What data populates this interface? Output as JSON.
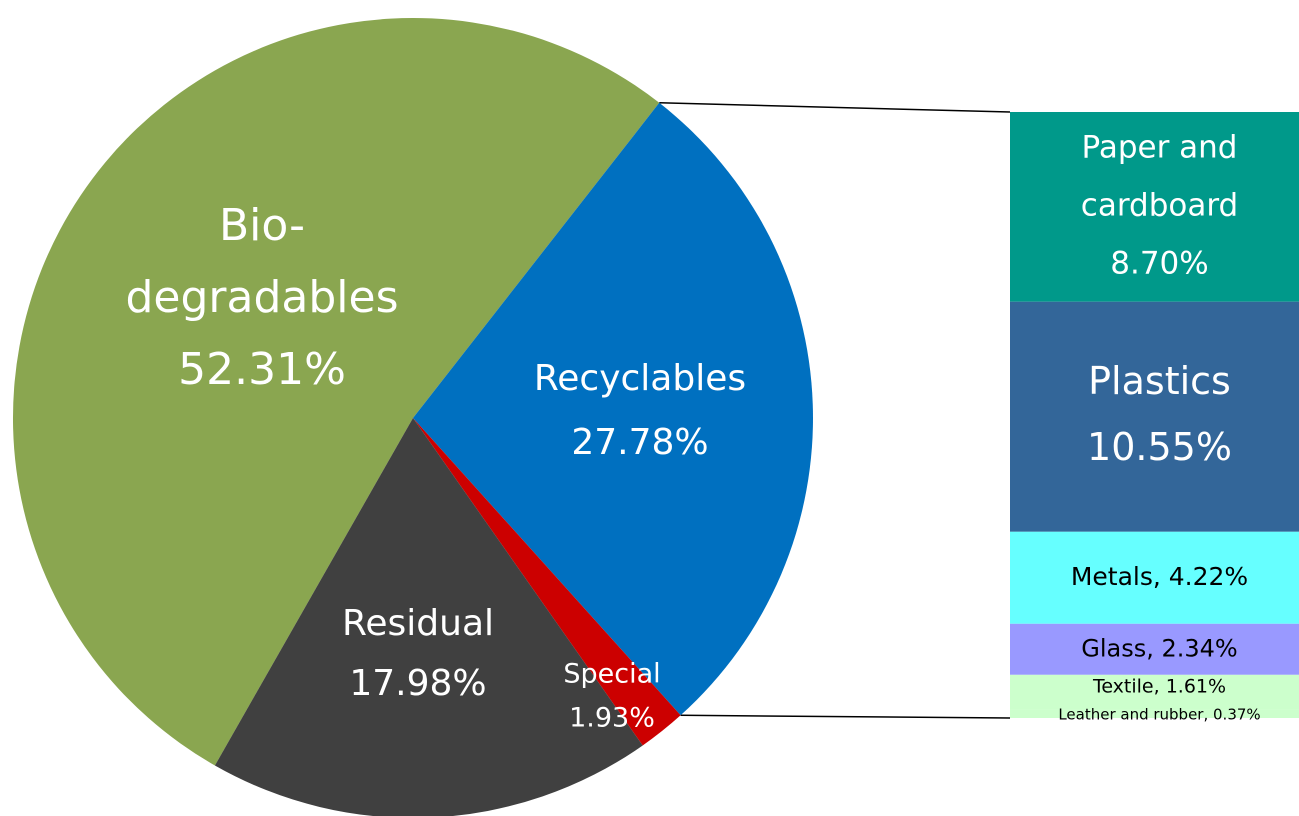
{
  "chart_data": {
    "type": "bar-of-pie",
    "title": "",
    "pie": {
      "slices": [
        {
          "name": "Bio-degradables",
          "label_lines": [
            "Bio-",
            "degradables"
          ],
          "value": 52.31,
          "value_label": "52.31%",
          "color": "#8aa650"
        },
        {
          "name": "Recyclables",
          "label_lines": [
            "Recyclables"
          ],
          "value": 27.78,
          "value_label": "27.78%",
          "color": "#0070c0"
        },
        {
          "name": "Special",
          "label_lines": [
            "Special"
          ],
          "value": 1.93,
          "value_label": "1.93%",
          "color": "#cc0000"
        },
        {
          "name": "Residual",
          "label_lines": [
            "Residual"
          ],
          "value": 17.98,
          "value_label": "17.98%",
          "color": "#404040"
        }
      ]
    },
    "breakdown_of": "Recyclables",
    "bar": {
      "segments": [
        {
          "name": "Paper and cardboard",
          "label_lines": [
            "Paper and",
            "cardboard"
          ],
          "value": 8.7,
          "value_label": "8.70%",
          "color": "#00998a",
          "text_color": "#ffffff"
        },
        {
          "name": "Plastics",
          "label_lines": [
            "Plastics"
          ],
          "value": 10.55,
          "value_label": "10.55%",
          "color": "#336699",
          "text_color": "#ffffff"
        },
        {
          "name": "Metals",
          "label_lines": [
            "Metals, 4.22%"
          ],
          "value": 4.22,
          "value_label": "",
          "color": "#66ffff",
          "text_color": "#000000"
        },
        {
          "name": "Glass",
          "label_lines": [
            "Glass, 2.34%"
          ],
          "value": 2.34,
          "value_label": "",
          "color": "#9999ff",
          "text_color": "#000000"
        },
        {
          "name": "Textile",
          "label_lines": [
            "Textile, 1.61%"
          ],
          "value": 1.61,
          "value_label": "",
          "color": "#ccffcc",
          "text_color": "#000000"
        },
        {
          "name": "Leather and rubber",
          "label_lines": [
            "Leather and rubber, 0.37%"
          ],
          "value": 0.37,
          "value_label": "",
          "color": "#ccffcc",
          "text_color": "#000000"
        }
      ]
    },
    "legend": "none"
  }
}
